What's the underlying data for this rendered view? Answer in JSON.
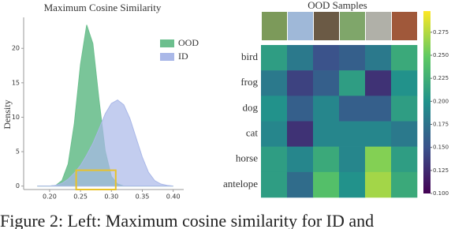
{
  "chart_data": [
    {
      "type": "density",
      "title": "Maximum Cosine Similarity",
      "ylabel": "Density",
      "x": [
        0.18,
        0.19,
        0.2,
        0.21,
        0.22,
        0.23,
        0.24,
        0.25,
        0.26,
        0.27,
        0.28,
        0.29,
        0.3,
        0.31,
        0.32,
        0.33,
        0.34,
        0.35,
        0.36,
        0.37,
        0.38,
        0.39,
        0.4
      ],
      "series": [
        {
          "name": "OOD",
          "color": "#6cbf8e",
          "values": [
            0,
            0,
            0,
            0.1,
            0.8,
            3.2,
            9.1,
            17.7,
            23.4,
            20.7,
            12.5,
            5.1,
            1.4,
            0.3,
            0,
            0,
            0,
            0,
            0,
            0,
            0,
            0,
            0
          ]
        },
        {
          "name": "ID",
          "color": "#aab8e8",
          "values": [
            0,
            0,
            0,
            0.1,
            0.4,
            1.0,
            1.9,
            3.0,
            4.5,
            6.2,
            8.3,
            10.5,
            12.0,
            12.5,
            11.8,
            9.8,
            7.0,
            4.2,
            2.0,
            0.8,
            0.3,
            0.1,
            0
          ]
        }
      ],
      "xlim": [
        0.158,
        0.417
      ],
      "ylim": [
        -0.5,
        24.5
      ],
      "xticks": [
        {
          "value": 0.2,
          "label": "0.20"
        },
        0.25,
        {
          "value": 0.3,
          "label": "0.30"
        },
        0.35,
        {
          "value": 0.4,
          "label": "0.40"
        }
      ],
      "yticks": [
        0,
        5,
        10,
        15,
        20
      ],
      "legend": "upper right",
      "highlight": {
        "x": [
          0.243,
          0.307
        ],
        "y": [
          -0.5,
          2.3
        ],
        "color": "#e8c22a"
      }
    },
    {
      "type": "heatmap",
      "title": "OOD Samples",
      "rows": [
        "bird",
        "frog",
        "dog",
        "cat",
        "horse",
        "antelope"
      ],
      "values": [
        [
          0.21,
          0.18,
          0.15,
          0.16,
          0.18,
          0.22
        ],
        [
          0.18,
          0.14,
          0.16,
          0.21,
          0.13,
          0.2
        ],
        [
          0.2,
          0.16,
          0.19,
          0.16,
          0.16,
          0.21
        ],
        [
          0.19,
          0.13,
          0.19,
          0.19,
          0.19,
          0.18
        ],
        [
          0.21,
          0.19,
          0.22,
          0.19,
          0.26,
          0.21
        ],
        [
          0.21,
          0.17,
          0.24,
          0.2,
          0.27,
          0.22
        ]
      ],
      "clim": [
        0.1,
        0.298
      ],
      "cticks": [
        {
          "value": 0.1,
          "label": "0.100"
        },
        0.125,
        {
          "value": 0.15,
          "label": "0.150"
        },
        0.175,
        {
          "value": 0.2,
          "label": "0.200"
        },
        0.225,
        {
          "value": 0.25,
          "label": "0.250"
        },
        0.275
      ]
    }
  ],
  "caption": "Figure 2: Left: Maximum cosine similarity for ID and"
}
